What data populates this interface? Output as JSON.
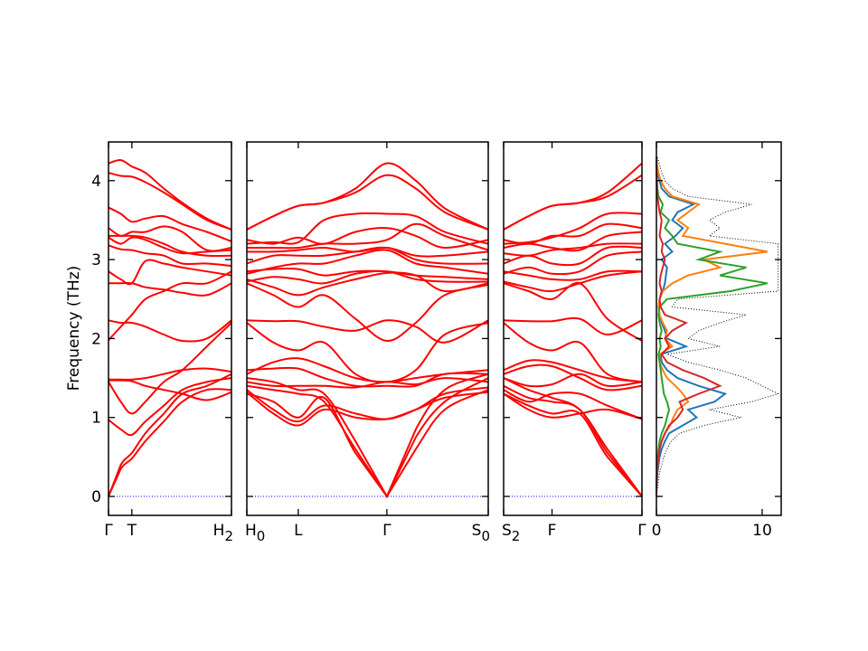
{
  "chart_data": [
    {
      "type": "line",
      "title": "",
      "ylabel": "Frequency (THz)",
      "ylim": [
        -0.24,
        4.49
      ],
      "yticks": [
        "0",
        "1",
        "2",
        "3",
        "4"
      ],
      "ytick_values": [
        0,
        1,
        2,
        3,
        4
      ],
      "band_color": "#ff0000",
      "zero_line_color": "#0000ff",
      "panels": [
        {
          "xticks": [
            {
              "k": 0,
              "label": "Γ",
              "sub": ""
            },
            {
              "k": 0.19,
              "label": "T",
              "sub": ""
            },
            {
              "k": 1,
              "label": "H",
              "sub": "2"
            }
          ],
          "k": [
            0,
            0.1,
            0.19,
            0.3,
            0.45,
            0.6,
            0.8,
            1.0
          ],
          "bands": [
            [
              4.22,
              4.26,
              4.18,
              4.1,
              3.9,
              3.72,
              3.52,
              3.38
            ],
            [
              4.1,
              4.06,
              4.05,
              3.98,
              3.85,
              3.7,
              3.5,
              3.38
            ],
            [
              3.66,
              3.58,
              3.48,
              3.52,
              3.55,
              3.45,
              3.35,
              3.23
            ],
            [
              3.4,
              3.3,
              3.35,
              3.35,
              3.42,
              3.35,
              3.12,
              3.15
            ],
            [
              3.3,
              3.3,
              3.3,
              3.28,
              3.2,
              3.1,
              3.05,
              3.05
            ],
            [
              3.28,
              3.2,
              3.28,
              3.25,
              3.15,
              3.08,
              3.1,
              3.12
            ],
            [
              3.18,
              3.13,
              3.12,
              3.08,
              3.05,
              2.95,
              2.95,
              2.92
            ],
            [
              2.85,
              2.75,
              2.7,
              2.98,
              2.95,
              2.9,
              2.85,
              2.8
            ],
            [
              2.7,
              2.7,
              2.7,
              2.65,
              2.62,
              2.58,
              2.55,
              2.7
            ],
            [
              1.98,
              2.15,
              2.3,
              2.5,
              2.6,
              2.7,
              2.7,
              2.85
            ],
            [
              2.23,
              2.2,
              2.2,
              2.15,
              2.05,
              1.97,
              2.0,
              2.23
            ],
            [
              1.48,
              1.48,
              1.48,
              1.5,
              1.55,
              1.6,
              1.62,
              1.58
            ],
            [
              1.45,
              1.2,
              1.05,
              1.2,
              1.45,
              1.6,
              1.9,
              2.2
            ],
            [
              0.97,
              0.85,
              0.78,
              0.95,
              1.15,
              1.35,
              1.45,
              1.5
            ],
            [
              0,
              0.4,
              0.55,
              0.8,
              1.05,
              1.3,
              1.4,
              1.55
            ],
            [
              0,
              0.35,
              0.48,
              0.7,
              0.95,
              1.2,
              1.35,
              1.35
            ],
            [
              1.47,
              1.47,
              1.46,
              1.4,
              1.35,
              1.3,
              1.22,
              1.32
            ]
          ]
        },
        {
          "xticks": [
            {
              "k": 0,
              "label": "H",
              "sub": "0"
            },
            {
              "k": 0.213,
              "label": "L",
              "sub": ""
            },
            {
              "k": 0.58,
              "label": "Γ",
              "sub": ""
            },
            {
              "k": 1,
              "label": "S",
              "sub": "0"
            }
          ],
          "k": [
            0,
            0.11,
            0.213,
            0.32,
            0.45,
            0.58,
            0.7,
            0.82,
            1.0
          ],
          "bands": [
            [
              3.38,
              3.55,
              3.68,
              3.72,
              3.9,
              4.22,
              4.0,
              3.65,
              3.38
            ],
            [
              3.38,
              3.55,
              3.68,
              3.72,
              3.85,
              4.07,
              3.9,
              3.6,
              3.38
            ],
            [
              3.2,
              3.22,
              3.22,
              3.5,
              3.58,
              3.58,
              3.55,
              3.35,
              3.2
            ],
            [
              3.25,
              3.2,
              3.28,
              3.2,
              3.35,
              3.4,
              3.3,
              3.15,
              3.25
            ],
            [
              3.15,
              3.15,
              3.15,
              3.2,
              3.2,
              3.25,
              3.45,
              3.3,
              3.12
            ],
            [
              3.1,
              3.1,
              3.12,
              3.15,
              3.1,
              3.15,
              3.05,
              3.05,
              3.1
            ],
            [
              2.95,
              3.05,
              3.05,
              3.05,
              3.1,
              3.15,
              3.0,
              2.95,
              2.95
            ],
            [
              2.82,
              2.9,
              2.95,
              2.95,
              3.05,
              3.12,
              2.95,
              2.9,
              2.82
            ],
            [
              2.85,
              2.88,
              2.88,
              2.8,
              2.85,
              2.85,
              2.8,
              2.78,
              2.75
            ],
            [
              2.72,
              2.78,
              2.75,
              2.7,
              2.82,
              2.85,
              2.75,
              2.72,
              2.72
            ],
            [
              2.75,
              2.65,
              2.55,
              2.65,
              2.75,
              2.83,
              2.8,
              2.6,
              2.7
            ],
            [
              2.7,
              2.55,
              2.4,
              2.55,
              2.25,
              1.97,
              2.2,
              2.55,
              2.68
            ],
            [
              2.23,
              2.22,
              2.22,
              2.15,
              2.1,
              2.23,
              2.15,
              1.95,
              2.23
            ],
            [
              2.2,
              1.95,
              1.85,
              1.95,
              1.55,
              1.45,
              1.6,
              2.05,
              2.2
            ],
            [
              1.55,
              1.7,
              1.75,
              1.65,
              1.5,
              1.45,
              1.5,
              1.55,
              1.6
            ],
            [
              1.6,
              1.62,
              1.62,
              1.5,
              1.4,
              1.4,
              1.4,
              1.55,
              1.55
            ],
            [
              1.45,
              1.4,
              1.4,
              1.4,
              1.38,
              1.45,
              1.42,
              1.5,
              1.45
            ],
            [
              1.35,
              1.1,
              0.95,
              1.15,
              1.05,
              0.98,
              1.1,
              1.3,
              1.38
            ],
            [
              1.32,
              1.05,
              0.9,
              1.1,
              1.0,
              0.98,
              1.1,
              1.25,
              1.32
            ],
            [
              1.5,
              1.45,
              1.35,
              1.3,
              0.7,
              0,
              0.85,
              1.35,
              1.55
            ],
            [
              1.4,
              1.35,
              1.3,
              1.2,
              0.6,
              0,
              0.75,
              1.2,
              1.5
            ],
            [
              1.3,
              1.2,
              1.0,
              1.25,
              0.55,
              0,
              0.6,
              1.1,
              1.35
            ]
          ]
        },
        {
          "xticks": [
            {
              "k": 0,
              "label": "S",
              "sub": "2"
            },
            {
              "k": 0.35,
              "label": "F",
              "sub": ""
            },
            {
              "k": 1,
              "label": "Γ",
              "sub": ""
            }
          ],
          "k": [
            0,
            0.18,
            0.35,
            0.55,
            0.75,
            1.0
          ],
          "bands": [
            [
              3.38,
              3.55,
              3.68,
              3.72,
              3.85,
              4.22
            ],
            [
              3.38,
              3.55,
              3.68,
              3.72,
              3.8,
              4.07
            ],
            [
              3.2,
              3.22,
              3.28,
              3.4,
              3.58,
              3.58
            ],
            [
              3.25,
              3.2,
              3.3,
              3.3,
              3.45,
              3.4
            ],
            [
              3.15,
              3.2,
              3.15,
              3.12,
              3.3,
              3.35
            ],
            [
              3.08,
              3.05,
              3.12,
              3.15,
              3.2,
              3.2
            ],
            [
              2.95,
              3.05,
              2.95,
              2.95,
              3.15,
              3.15
            ],
            [
              2.82,
              2.9,
              2.82,
              2.85,
              3.05,
              3.1
            ],
            [
              2.85,
              2.8,
              2.75,
              2.75,
              2.85,
              2.85
            ],
            [
              2.72,
              2.65,
              2.6,
              2.7,
              2.8,
              2.85
            ],
            [
              2.7,
              2.6,
              2.5,
              2.7,
              2.25,
              1.97
            ],
            [
              2.23,
              2.22,
              2.22,
              2.25,
              2.05,
              2.23
            ],
            [
              2.2,
              1.95,
              1.85,
              1.95,
              1.55,
              1.45
            ],
            [
              1.6,
              1.72,
              1.7,
              1.6,
              1.5,
              1.45
            ],
            [
              1.55,
              1.65,
              1.65,
              1.5,
              1.35,
              1.4
            ],
            [
              1.5,
              1.4,
              1.42,
              1.55,
              1.4,
              1.45
            ],
            [
              1.35,
              1.2,
              1.3,
              1.3,
              1.15,
              0.98
            ],
            [
              1.3,
              1.1,
              1.0,
              1.05,
              1.1,
              0.98
            ],
            [
              1.5,
              1.35,
              1.25,
              1.1,
              0.6,
              0
            ],
            [
              1.4,
              1.25,
              1.2,
              1.1,
              0.55,
              0
            ],
            [
              1.3,
              1.15,
              1.05,
              1.05,
              0.5,
              0
            ]
          ]
        }
      ],
      "dos": {
        "type": "line",
        "xlim": [
          0,
          11.8
        ],
        "xticks": [
          "0",
          "10"
        ],
        "xtick_values": [
          0,
          10
        ],
        "frequency": [
          0,
          0.1,
          0.2,
          0.3,
          0.4,
          0.5,
          0.6,
          0.7,
          0.8,
          0.9,
          1.0,
          1.1,
          1.2,
          1.3,
          1.4,
          1.5,
          1.6,
          1.7,
          1.8,
          1.9,
          2.0,
          2.1,
          2.2,
          2.3,
          2.4,
          2.5,
          2.6,
          2.7,
          2.8,
          2.9,
          3.0,
          3.1,
          3.2,
          3.3,
          3.4,
          3.5,
          3.6,
          3.7,
          3.8,
          3.9,
          4.0,
          4.1,
          4.2,
          4.3
        ],
        "total": {
          "color": "#000000",
          "style": "dotted",
          "values": [
            0,
            0.1,
            0.2,
            0.3,
            0.5,
            0.7,
            1.0,
            1.4,
            2.2,
            4.5,
            8.0,
            5.0,
            9.0,
            11.5,
            10.0,
            8.5,
            6.0,
            3.0,
            1.0,
            6.0,
            3.0,
            4.0,
            6.0,
            8.5,
            1.5,
            2.0,
            11.5,
            11.5,
            11.5,
            11.5,
            11.5,
            11.5,
            11.5,
            5.0,
            6.0,
            5.0,
            6.5,
            9.0,
            3.0,
            1.5,
            0.8,
            0.5,
            0.3,
            0.1
          ]
        },
        "projections": [
          {
            "color": "#1f77b4",
            "values": [
              0,
              0,
              0.05,
              0.1,
              0.2,
              0.3,
              0.5,
              0.8,
              1.2,
              2.5,
              3.8,
              3.0,
              5.5,
              6.5,
              4.0,
              2.0,
              1.0,
              0.5,
              0.4,
              2.8,
              1.0,
              0.8,
              0.5,
              0.3,
              0.2,
              0.3,
              0.6,
              0.8,
              0.9,
              1.0,
              0.5,
              1.5,
              0.8,
              1.8,
              2.5,
              1.5,
              2.0,
              3.5,
              1.2,
              0.5,
              0.3,
              0.1,
              0.05,
              0
            ]
          },
          {
            "color": "#ff7f0e",
            "values": [
              0,
              0,
              0.02,
              0.05,
              0.1,
              0.15,
              0.3,
              0.5,
              0.8,
              1.3,
              1.6,
              2.0,
              3.0,
              2.5,
              1.8,
              1.0,
              0.6,
              0.3,
              0.3,
              1.5,
              0.8,
              1.0,
              0.6,
              0.3,
              0.2,
              0.3,
              0.6,
              1.5,
              3.0,
              6.0,
              4.5,
              10.5,
              6.5,
              2.5,
              3.0,
              2.0,
              3.0,
              4.0,
              1.5,
              0.8,
              0.4,
              0.2,
              0.05,
              0
            ]
          },
          {
            "color": "#2ca02c",
            "values": [
              0,
              0,
              0.02,
              0.05,
              0.08,
              0.12,
              0.2,
              0.3,
              0.5,
              0.8,
              1.0,
              1.2,
              1.0,
              0.7,
              0.6,
              0.5,
              0.4,
              0.3,
              0.2,
              0.4,
              0.3,
              0.5,
              0.3,
              0.2,
              0.3,
              1.0,
              7.0,
              10.5,
              6.0,
              8.5,
              4.0,
              6.0,
              2.0,
              1.5,
              0.8,
              1.2,
              0.4,
              0.6,
              0.2,
              0.1,
              0.05,
              0.02,
              0.01,
              0
            ]
          },
          {
            "color": "#d62728",
            "values": [
              0,
              0,
              0.02,
              0.05,
              0.1,
              0.2,
              0.3,
              0.5,
              0.8,
              1.2,
              2.0,
              2.5,
              2.2,
              4.0,
              6.0,
              4.5,
              2.5,
              1.0,
              0.5,
              1.2,
              0.8,
              1.5,
              2.8,
              0.8,
              0.4,
              0.3,
              0.5,
              0.3,
              0.4,
              0.6,
              0.8,
              0.5,
              0.6,
              0.3,
              0.4,
              0.5,
              0.3,
              0.2,
              0.1,
              0.05,
              0.03,
              0.02,
              0.01,
              0
            ]
          }
        ]
      }
    }
  ]
}
